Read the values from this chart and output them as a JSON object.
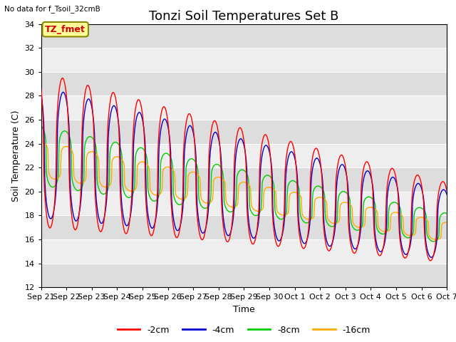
{
  "title": "Tonzi Soil Temperatures Set B",
  "no_data_label": "No data for f_Tsoil_32cmB",
  "tz_fmet_label": "TZ_fmet",
  "xlabel": "Time",
  "ylabel": "Soil Temperature (C)",
  "ylim": [
    12,
    34
  ],
  "yticks": [
    12,
    14,
    16,
    18,
    20,
    22,
    24,
    26,
    28,
    30,
    32,
    34
  ],
  "series_colors": [
    "#ff0000",
    "#0000cc",
    "#00cc00",
    "#ffaa00"
  ],
  "series_labels": [
    "-2cm",
    "-4cm",
    "-8cm",
    "-16cm"
  ],
  "background_color": "#ffffff",
  "plot_bg_light": "#eeeeee",
  "plot_bg_dark": "#dddddd",
  "title_fontsize": 13,
  "label_fontsize": 9,
  "tick_fontsize": 8
}
